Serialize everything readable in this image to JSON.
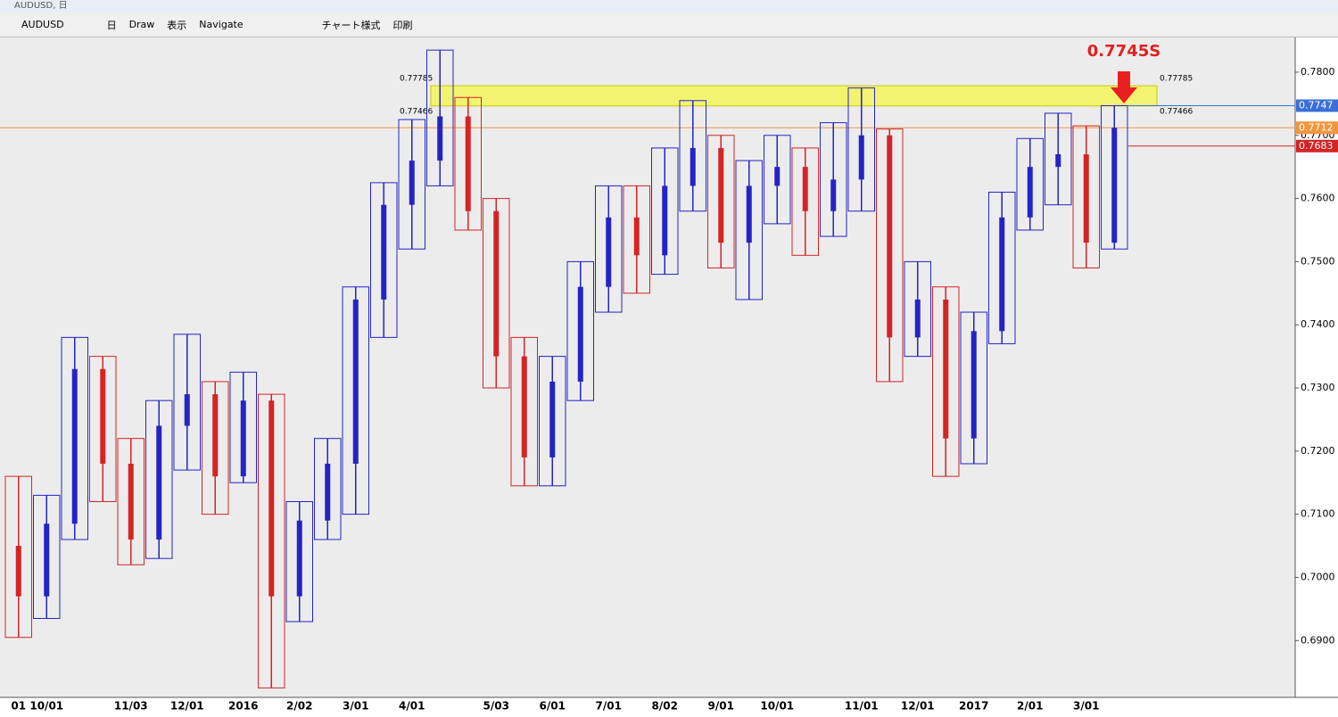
{
  "window": {
    "title": "AUDUSD, 日"
  },
  "toolbar": {
    "symbol": "AUDUSD",
    "period": "日",
    "draw": "Draw",
    "view": "表示",
    "navigate": "Navigate",
    "style": "チャート様式",
    "print": "印刷"
  },
  "chart_data": {
    "type": "candlestick",
    "categories": [
      "01",
      "10/01",
      null,
      null,
      "11/03",
      null,
      "12/01",
      null,
      "2016",
      null,
      "2/02",
      null,
      "3/01",
      null,
      "4/01",
      null,
      null,
      "5/03",
      null,
      "6/01",
      null,
      "7/01",
      null,
      "8/02",
      null,
      "9/01",
      null,
      "10/01",
      null,
      null,
      "11/01",
      null,
      "12/01",
      null,
      "2017",
      null,
      "2/01",
      null,
      "3/01",
      null
    ],
    "open": [
      0.705,
      0.697,
      0.7085,
      0.733,
      0.718,
      0.706,
      0.724,
      0.729,
      0.716,
      0.728,
      0.697,
      0.709,
      0.718,
      0.744,
      0.759,
      0.766,
      0.773,
      0.758,
      0.735,
      0.719,
      0.731,
      0.746,
      0.757,
      0.751,
      0.762,
      0.768,
      0.753,
      0.762,
      0.765,
      0.758,
      0.763,
      0.77,
      0.738,
      0.744,
      0.722,
      0.739,
      0.757,
      0.765,
      0.767,
      0.753
    ],
    "high": [
      0.716,
      0.713,
      0.738,
      0.735,
      0.722,
      0.728,
      0.7385,
      0.731,
      0.7325,
      0.729,
      0.712,
      0.722,
      0.746,
      0.7625,
      0.7725,
      0.7835,
      0.776,
      0.76,
      0.738,
      0.735,
      0.75,
      0.762,
      0.762,
      0.768,
      0.7755,
      0.77,
      0.766,
      0.77,
      0.768,
      0.772,
      0.7775,
      0.771,
      0.75,
      0.746,
      0.742,
      0.761,
      0.7695,
      0.7735,
      0.7715,
      0.7747
    ],
    "low": [
      0.6905,
      0.6935,
      0.706,
      0.712,
      0.702,
      0.703,
      0.717,
      0.71,
      0.715,
      0.6825,
      0.693,
      0.706,
      0.71,
      0.738,
      0.752,
      0.762,
      0.755,
      0.73,
      0.7145,
      0.7145,
      0.728,
      0.742,
      0.745,
      0.748,
      0.758,
      0.749,
      0.744,
      0.756,
      0.751,
      0.754,
      0.758,
      0.731,
      0.735,
      0.716,
      0.718,
      0.737,
      0.755,
      0.759,
      0.749,
      0.752
    ],
    "close": [
      0.697,
      0.7085,
      0.733,
      0.718,
      0.706,
      0.724,
      0.729,
      0.716,
      0.728,
      0.697,
      0.709,
      0.718,
      0.744,
      0.759,
      0.766,
      0.773,
      0.758,
      0.735,
      0.719,
      0.731,
      0.746,
      0.757,
      0.751,
      0.762,
      0.768,
      0.753,
      0.762,
      0.765,
      0.758,
      0.763,
      0.77,
      0.738,
      0.744,
      0.722,
      0.739,
      0.757,
      0.765,
      0.767,
      0.753,
      0.7712
    ],
    "up_color": "#2424c4",
    "down_color": "#d42424",
    "ylim": [
      0.681,
      0.7855
    ],
    "yticks": [
      {
        "value": 0.69,
        "label": "0.6900"
      },
      {
        "value": 0.7,
        "label": "0.7000"
      },
      {
        "value": 0.71,
        "label": "0.7100"
      },
      {
        "value": 0.72,
        "label": "0.7200"
      },
      {
        "value": 0.73,
        "label": "0.7300"
      },
      {
        "value": 0.74,
        "label": "0.7400"
      },
      {
        "value": 0.75,
        "label": "0.7500"
      },
      {
        "value": 0.76,
        "label": "0.7600"
      },
      {
        "value": 0.77,
        "label": "0.7700"
      },
      {
        "value": 0.78,
        "label": "0.7800"
      }
    ],
    "zone": {
      "high": 0.77785,
      "low": 0.77466,
      "color": "#f5f54a"
    },
    "price_lines": [
      {
        "value": 0.7747,
        "color": "#3a6fd8"
      },
      {
        "value": 0.7712,
        "color": "#f0963c"
      },
      {
        "value": 0.7683,
        "color": "#d42424"
      }
    ],
    "annotation": "0.7745S"
  }
}
